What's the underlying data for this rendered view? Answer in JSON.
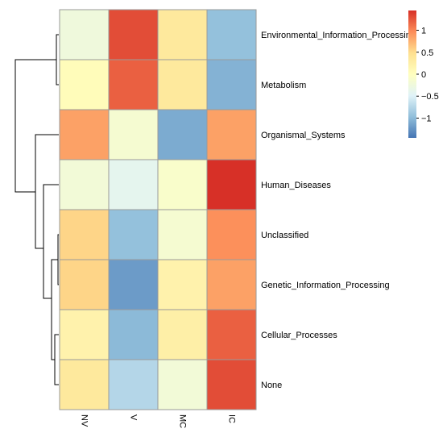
{
  "chart_data": {
    "type": "heatmap",
    "columns": [
      "NV",
      "V",
      "MC",
      "IC"
    ],
    "rows": [
      "Environmental_Information_Processing",
      "Metabolism",
      "Organismal_Systems",
      "Human_Diseases",
      "Unclassified",
      "Genetic_Information_Processing",
      "Cellular_Processes",
      "None"
    ],
    "values": [
      [
        -0.25,
        1.3,
        0.35,
        -0.95
      ],
      [
        0.05,
        1.2,
        0.35,
        -1.05
      ],
      [
        0.85,
        -0.15,
        -1.1,
        0.85
      ],
      [
        -0.2,
        -0.4,
        -0.1,
        1.45
      ],
      [
        0.55,
        -0.95,
        -0.15,
        0.95
      ],
      [
        0.55,
        -1.2,
        0.2,
        0.85
      ],
      [
        0.2,
        -1.0,
        0.25,
        1.2
      ],
      [
        0.35,
        -0.75,
        -0.2,
        1.3
      ]
    ],
    "color_scale": {
      "min": -1.45,
      "max": 1.45,
      "colors": [
        "#4575b4",
        "#91bfdb",
        "#e0f3f8",
        "#ffffbf",
        "#fee090",
        "#fc8d59",
        "#d73027"
      ],
      "ticks": [
        1,
        0.5,
        0,
        -0.5,
        -1
      ],
      "tick_labels": [
        "1",
        "0.5",
        "0",
        "−0.5",
        "−1"
      ]
    },
    "row_dendrogram": true,
    "column_dendrogram": false,
    "legend_position": "top-right"
  }
}
